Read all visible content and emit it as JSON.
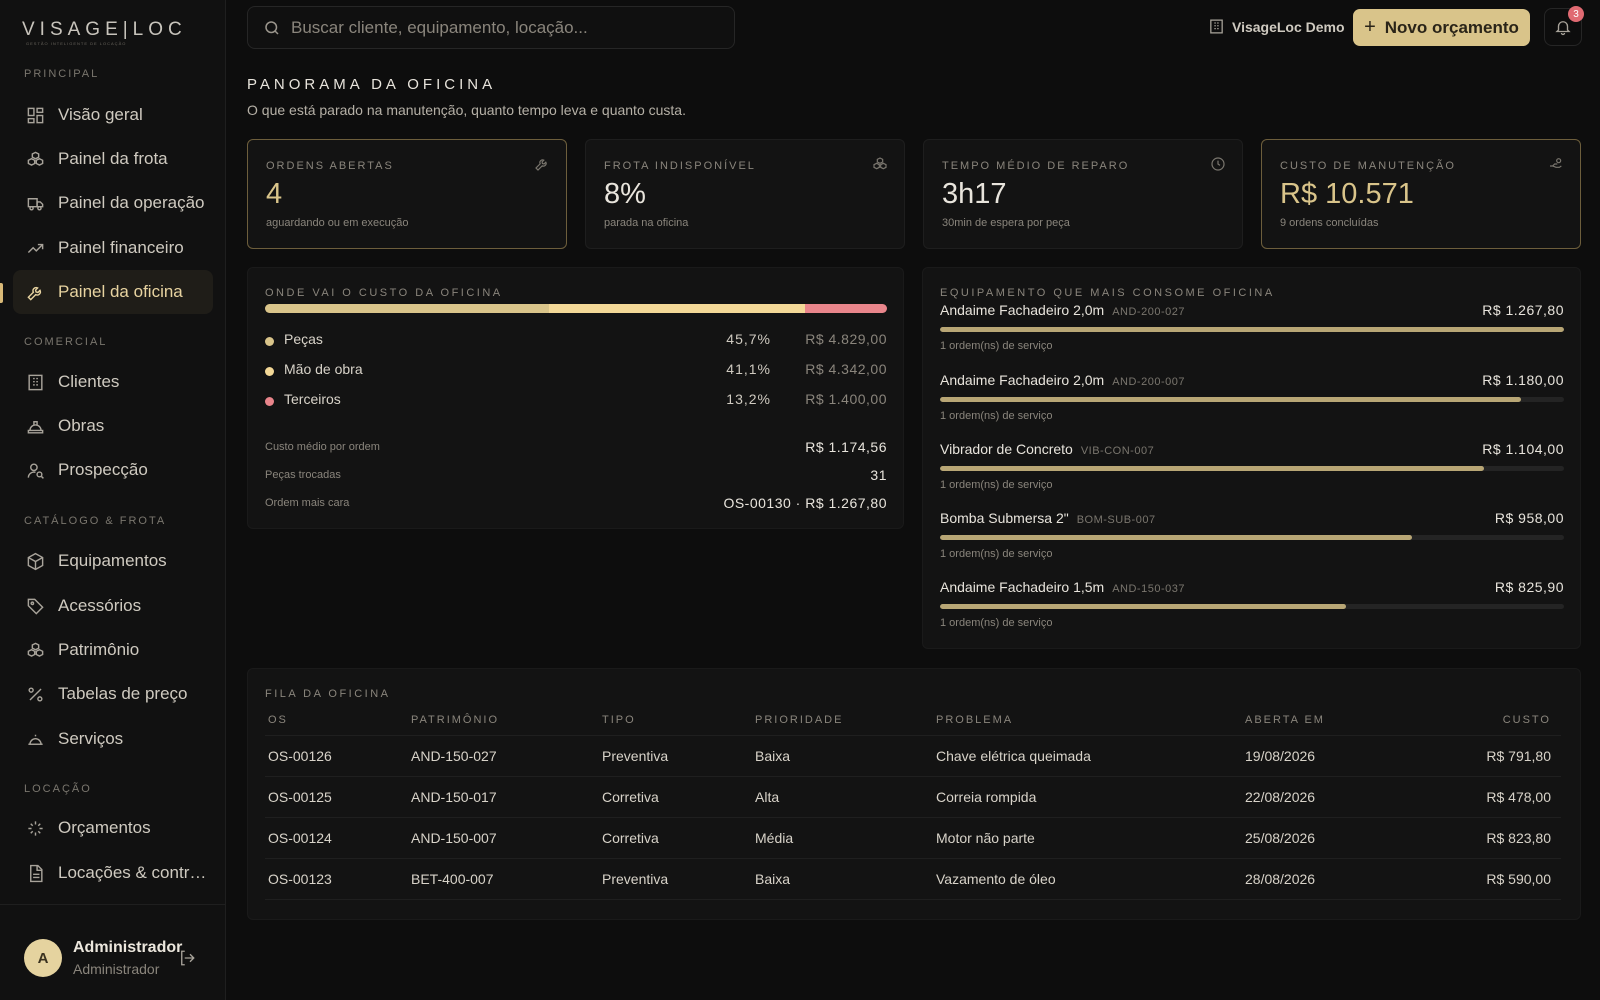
{
  "brand": {
    "name": "VISAGE|LOC",
    "tagline": "GESTÃO INTELIGENTE DE LOCAÇÃO"
  },
  "sidebar": {
    "sections": [
      {
        "title": "PRINCIPAL",
        "items": [
          {
            "label": "Visão geral",
            "icon": "dashboard-grid-icon"
          },
          {
            "label": "Painel da frota",
            "icon": "fleet-boxes-icon"
          },
          {
            "label": "Painel da operação",
            "icon": "truck-icon"
          },
          {
            "label": "Painel financeiro",
            "icon": "trend-up-icon"
          },
          {
            "label": "Painel da oficina",
            "icon": "wrench-icon",
            "active": true
          }
        ]
      },
      {
        "title": "COMERCIAL",
        "items": [
          {
            "label": "Clientes",
            "icon": "building-icon"
          },
          {
            "label": "Obras",
            "icon": "hard-hat-icon"
          },
          {
            "label": "Prospecção",
            "icon": "user-search-icon"
          }
        ]
      },
      {
        "title": "CATÁLOGO & FROTA",
        "items": [
          {
            "label": "Equipamentos",
            "icon": "package-icon"
          },
          {
            "label": "Acessórios",
            "icon": "tag-icon"
          },
          {
            "label": "Patrimônio",
            "icon": "boxes-icon"
          },
          {
            "label": "Tabelas de preço",
            "icon": "percent-icon"
          },
          {
            "label": "Serviços",
            "icon": "service-bell-icon"
          }
        ]
      },
      {
        "title": "LOCAÇÃO",
        "items": [
          {
            "label": "Orçamentos",
            "icon": "sparkles-icon"
          },
          {
            "label": "Locações & contratos",
            "icon": "document-icon"
          }
        ]
      }
    ],
    "user": {
      "initial": "A",
      "name": "Administrador",
      "role": "Administrador"
    }
  },
  "topbar": {
    "search_placeholder": "Buscar cliente, equipamento, locação...",
    "org_name": "VisageLoc Demo",
    "new_button": "Novo orçamento",
    "notifications": "3"
  },
  "page": {
    "title": "PANORAMA DA OFICINA",
    "subtitle": "O que está parado na manutenção, quanto tempo leva e quanto custa."
  },
  "kpis": [
    {
      "label": "ORDENS ABERTAS",
      "value": "4",
      "sub": "aguardando ou em execução",
      "icon": "wrench-icon"
    },
    {
      "label": "FROTA INDISPONÍVEL",
      "value": "8%",
      "sub": "parada na oficina",
      "icon": "boxes-icon"
    },
    {
      "label": "TEMPO MÉDIO DE REPARO",
      "value": "3h17",
      "sub": "30min de espera por peça",
      "icon": "clock-icon"
    },
    {
      "label": "CUSTO DE MANUTENÇÃO",
      "value": "R$ 10.571",
      "sub": "9 ordens concluídas",
      "icon": "hand-coins-icon"
    }
  ],
  "cost_breakdown": {
    "title": "ONDE VAI O CUSTO DA OFICINA",
    "items": [
      {
        "name": "Peças",
        "pct": "45,7%",
        "share": 45.7,
        "amount": "R$ 4.829,00",
        "color": "#d9c48a"
      },
      {
        "name": "Mão de obra",
        "pct": "41,1%",
        "share": 41.1,
        "amount": "R$ 4.342,00",
        "color": "#f3d897"
      },
      {
        "name": "Terceiros",
        "pct": "13,2%",
        "share": 13.2,
        "amount": "R$ 1.400,00",
        "color": "#e9858b"
      }
    ],
    "stats": [
      {
        "label": "Custo médio por ordem",
        "value": "R$ 1.174,56"
      },
      {
        "label": "Peças trocadas",
        "value": "31"
      },
      {
        "label": "Ordem mais cara",
        "value": "OS-00130 · R$ 1.267,80"
      }
    ]
  },
  "top_equipment": {
    "title": "EQUIPAMENTO QUE MAIS CONSOME OFICINA",
    "items": [
      {
        "name": "Andaime Fachadeiro 2,0m",
        "code": "AND-200-027",
        "cost": "R$ 1.267,80",
        "share": 100,
        "sub": "1 ordem(ns) de serviço"
      },
      {
        "name": "Andaime Fachadeiro 2,0m",
        "code": "AND-200-007",
        "cost": "R$ 1.180,00",
        "share": 93.1,
        "sub": "1 ordem(ns) de serviço"
      },
      {
        "name": "Vibrador de Concreto",
        "code": "VIB-CON-007",
        "cost": "R$ 1.104,00",
        "share": 87.1,
        "sub": "1 ordem(ns) de serviço"
      },
      {
        "name": "Bomba Submersa 2\"",
        "code": "BOM-SUB-007",
        "cost": "R$ 958,00",
        "share": 75.6,
        "sub": "1 ordem(ns) de serviço"
      },
      {
        "name": "Andaime Fachadeiro 1,5m",
        "code": "AND-150-037",
        "cost": "R$ 825,90",
        "share": 65.1,
        "sub": "1 ordem(ns) de serviço"
      }
    ]
  },
  "queue": {
    "title": "FILA DA OFICINA",
    "columns": [
      "OS",
      "PATRIMÔNIO",
      "TIPO",
      "PRIORIDADE",
      "PROBLEMA",
      "ABERTA EM",
      "CUSTO"
    ],
    "rows": [
      [
        "OS-00126",
        "AND-150-027",
        "Preventiva",
        "Baixa",
        "Chave elétrica queimada",
        "19/08/2026",
        "R$ 791,80"
      ],
      [
        "OS-00125",
        "AND-150-017",
        "Corretiva",
        "Alta",
        "Correia rompida",
        "22/08/2026",
        "R$ 478,00"
      ],
      [
        "OS-00124",
        "AND-150-007",
        "Corretiva",
        "Média",
        "Motor não parte",
        "25/08/2026",
        "R$ 823,80"
      ],
      [
        "OS-00123",
        "BET-400-007",
        "Preventiva",
        "Baixa",
        "Vazamento de óleo",
        "28/08/2026",
        "R$ 590,00"
      ]
    ]
  }
}
